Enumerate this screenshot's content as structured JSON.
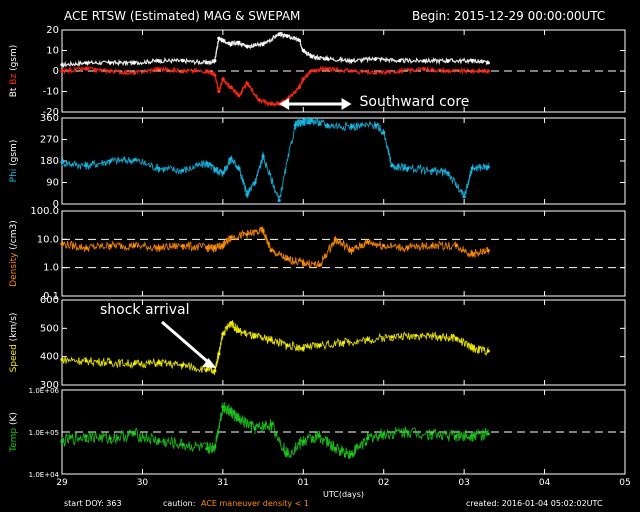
{
  "header": {
    "title": "ACE RTSW (Estimated) MAG & SWEPAM",
    "begin": "Begin: 2015-12-29 00:00:00UTC"
  },
  "footer": {
    "start": "start DOY: 363",
    "caution_label": "caution:",
    "caution_text": "ACE maneuver  density < 1",
    "created": "created: 2016-01-04 05:02:02UTC"
  },
  "colors": {
    "bt": "#ffffff",
    "bz": "#ff2a14",
    "phi": "#19b9e6",
    "density": "#ff8c0a",
    "speed": "#f5f00a",
    "temp": "#1ec81e",
    "axes": "#ffffff",
    "background": "#000000"
  },
  "chart_data": [
    {
      "type": "line",
      "panel": "mag",
      "ylabel": [
        "Bt",
        "Bz",
        "(gsm)"
      ],
      "ylim": [
        -20,
        20
      ],
      "yticks": [
        -20,
        -10,
        0,
        10,
        20
      ],
      "reference_line": 0,
      "series": [
        {
          "name": "Bt",
          "x": [
            0,
            0.3,
            0.6,
            0.9,
            1.2,
            1.5,
            1.8,
            1.9,
            1.95,
            2.0,
            2.1,
            2.2,
            2.3,
            2.5,
            2.7,
            2.8,
            2.95,
            3.0,
            3.1,
            3.3,
            3.6,
            3.9,
            4.2,
            4.5,
            4.8,
            5.1,
            5.3
          ],
          "values": [
            3,
            4,
            4,
            4,
            5,
            5,
            4,
            5,
            16,
            15,
            13,
            14,
            12,
            13,
            18,
            17,
            15,
            10,
            7,
            6,
            5,
            6,
            5,
            5,
            5,
            5,
            4
          ]
        },
        {
          "name": "Bz",
          "x": [
            0,
            0.3,
            0.6,
            0.9,
            1.2,
            1.5,
            1.8,
            1.9,
            1.95,
            2.0,
            2.1,
            2.2,
            2.3,
            2.45,
            2.6,
            2.7,
            2.8,
            2.95,
            3.0,
            3.1,
            3.3,
            3.6,
            3.9,
            4.2,
            4.5,
            4.8,
            5.1,
            5.3
          ],
          "values": [
            0,
            1,
            0,
            -1,
            1,
            0,
            0,
            -2,
            -10,
            -4,
            -8,
            -12,
            -6,
            -14,
            -16,
            -16,
            -14,
            -8,
            -4,
            0,
            1,
            0,
            -1,
            0,
            1,
            0,
            0,
            0
          ]
        }
      ]
    },
    {
      "type": "scatter",
      "panel": "phi",
      "ylabel": [
        "Phi",
        "(gsm)"
      ],
      "ylim": [
        0,
        360
      ],
      "yticks": [
        0,
        90,
        180,
        270,
        360
      ],
      "series": [
        {
          "name": "Phi",
          "x": [
            0,
            0.3,
            0.6,
            0.9,
            1.2,
            1.5,
            1.8,
            1.9,
            2.0,
            2.1,
            2.2,
            2.3,
            2.4,
            2.5,
            2.7,
            2.9,
            3.0,
            3.1,
            3.3,
            3.6,
            3.9,
            4.0,
            4.1,
            4.3,
            4.6,
            4.8,
            5.0,
            5.1,
            5.3
          ],
          "values": [
            175,
            160,
            180,
            185,
            150,
            140,
            170,
            145,
            130,
            190,
            150,
            40,
            90,
            200,
            15,
            330,
            345,
            350,
            330,
            325,
            330,
            300,
            160,
            150,
            140,
            130,
            30,
            150,
            155
          ]
        }
      ]
    },
    {
      "type": "scatter",
      "panel": "density",
      "ylabel": [
        "Density",
        "(/cm3)"
      ],
      "log": true,
      "ylim": [
        0.1,
        100
      ],
      "yticks": [
        0.1,
        1,
        10,
        100
      ],
      "ytick_labels": [
        "0.1",
        "1.0",
        "10.0",
        "100.0"
      ],
      "reference_lines": [
        1,
        10
      ],
      "series": [
        {
          "name": "Density",
          "x": [
            0,
            0.3,
            0.6,
            0.9,
            1.2,
            1.5,
            1.8,
            1.9,
            2.0,
            2.1,
            2.3,
            2.5,
            2.6,
            2.8,
            3.0,
            3.2,
            3.4,
            3.6,
            3.8,
            4.0,
            4.3,
            4.6,
            4.9,
            5.1,
            5.3
          ],
          "values": [
            7,
            5,
            6,
            6,
            5,
            6,
            5,
            5,
            6,
            12,
            15,
            20,
            4,
            2,
            1.5,
            1.2,
            10,
            4,
            8,
            6,
            5,
            6,
            6,
            3,
            4
          ]
        }
      ]
    },
    {
      "type": "scatter",
      "panel": "speed",
      "ylabel": [
        "Speed",
        "(km/s)"
      ],
      "ylim": [
        300,
        600
      ],
      "yticks": [
        300,
        400,
        500,
        600
      ],
      "annotation": "shock arrival",
      "series": [
        {
          "name": "Speed",
          "x": [
            0,
            0.3,
            0.6,
            0.9,
            1.2,
            1.5,
            1.8,
            1.9,
            1.95,
            2.0,
            2.1,
            2.2,
            2.4,
            2.6,
            2.8,
            3.0,
            3.2,
            3.5,
            3.8,
            4.1,
            4.4,
            4.7,
            4.9,
            5.1,
            5.3
          ],
          "values": [
            390,
            385,
            380,
            375,
            378,
            370,
            355,
            350,
            410,
            480,
            520,
            490,
            470,
            460,
            440,
            430,
            440,
            450,
            460,
            470,
            475,
            470,
            465,
            430,
            420
          ]
        }
      ]
    },
    {
      "type": "scatter",
      "panel": "temp",
      "ylabel": [
        "Temp",
        "(K)"
      ],
      "log": true,
      "ylim": [
        10000,
        1000000
      ],
      "yticks": [
        10000,
        100000,
        1000000
      ],
      "ytick_labels": [
        "1.0E+04",
        "1.0E+05",
        "1.0E+06"
      ],
      "reference_line": 100000,
      "series": [
        {
          "name": "Temp",
          "x": [
            0,
            0.3,
            0.6,
            0.9,
            1.2,
            1.5,
            1.8,
            1.9,
            2.0,
            2.1,
            2.2,
            2.4,
            2.6,
            2.8,
            3.0,
            3.2,
            3.4,
            3.6,
            3.8,
            4.0,
            4.3,
            4.6,
            4.9,
            5.1,
            5.3
          ],
          "values": [
            60000,
            80000,
            70000,
            90000,
            60000,
            50000,
            40000,
            45000,
            400000,
            300000,
            200000,
            120000,
            150000,
            30000,
            60000,
            80000,
            40000,
            30000,
            70000,
            90000,
            100000,
            90000,
            80000,
            85000,
            90000
          ]
        }
      ]
    },
    {
      "panel": "xaxis",
      "xlabel": "UTC(days)",
      "xlim": [
        0,
        6
      ],
      "ticks": [
        0,
        1,
        2,
        3,
        4,
        5,
        6
      ],
      "tick_labels": [
        "29",
        "30",
        "31",
        "01",
        "02",
        "03",
        "04",
        "05"
      ],
      "tick_positions": [
        0,
        1,
        2,
        3,
        4,
        5,
        6,
        7
      ],
      "total_days": 7
    },
    {
      "panel": "annotation-southward",
      "label": "Southward core",
      "range": [
        2.7,
        3.6
      ]
    }
  ]
}
